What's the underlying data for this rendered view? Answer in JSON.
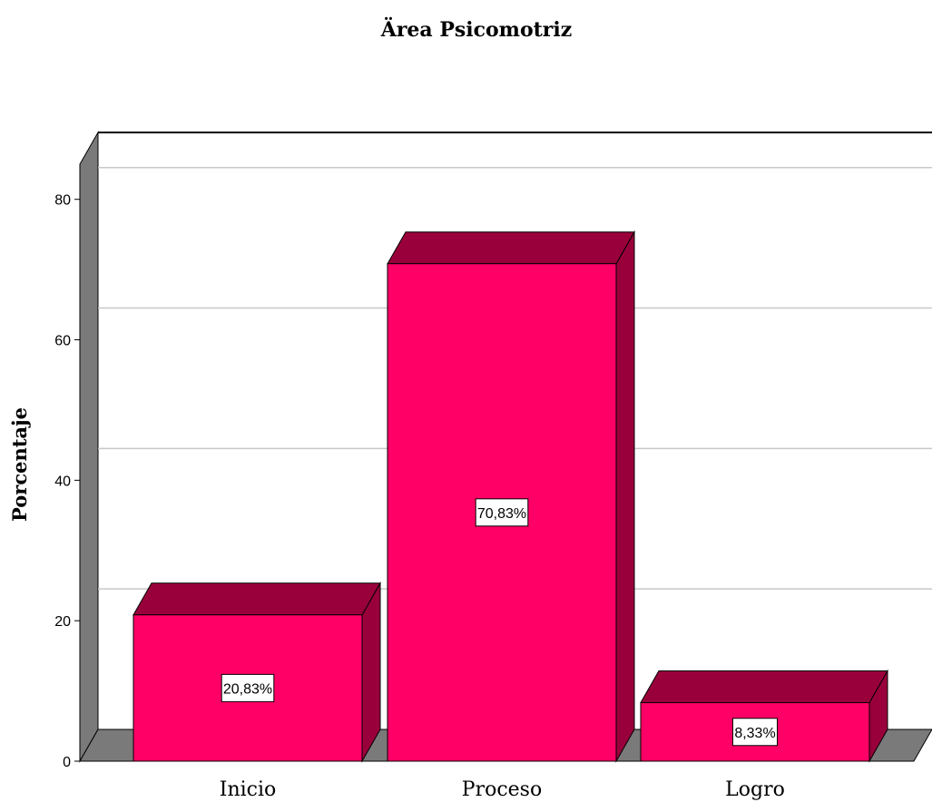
{
  "colors": {
    "bar_front": "#ff0066",
    "bar_top": "#99003b",
    "bar_side": "#99003b",
    "wall_left": "#7a7a7a",
    "floor": "#7a7a7a",
    "grid": "#c8c8c8"
  },
  "chart_data": {
    "type": "bar",
    "title": "Ärea Psicomotriz",
    "ylabel": "Porcentaje",
    "xlabel": "",
    "ylim": [
      0,
      85
    ],
    "yticks": [
      0,
      20,
      40,
      60,
      80
    ],
    "ytick_labels": [
      "0",
      "20",
      "40",
      "60",
      "80"
    ],
    "grid": true,
    "categories": [
      "Inicio",
      "Proceso",
      "Logro"
    ],
    "values": [
      20.83,
      70.83,
      8.33
    ],
    "data_labels": [
      "20,83%",
      "70,83%",
      "8,33%"
    ]
  }
}
